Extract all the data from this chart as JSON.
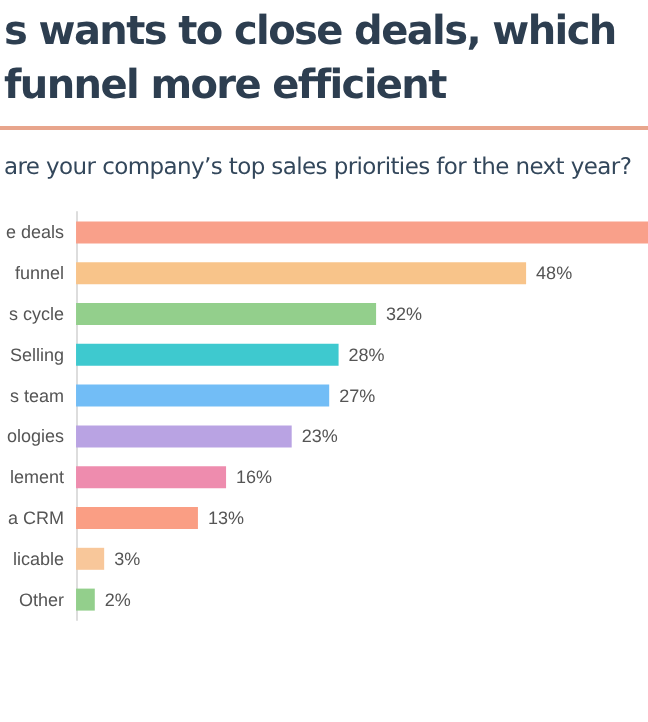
{
  "chart_data": {
    "type": "bar",
    "orientation": "horizontal",
    "title": "s wants to close deals, which\nfunnel more efficient",
    "subtitle": "are your company’s top sales priorities for the next year?",
    "categories": [
      "e deals",
      "funnel",
      "s cycle",
      "Selling",
      "s team",
      "ologies",
      "lement",
      "a CRM",
      "licable",
      "Other"
    ],
    "values": [
      61,
      48,
      32,
      28,
      27,
      23,
      16,
      13,
      3,
      2
    ],
    "colors": [
      "#f9a08a",
      "#f8c48a",
      "#93cf8c",
      "#3ec9cf",
      "#72bdf6",
      "#b9a3e3",
      "#ee8cae",
      "#fa9e84",
      "#f8c79a",
      "#93cf8c"
    ],
    "value_labels": [
      null,
      "48%",
      "32%",
      "28%",
      "27%",
      "23%",
      "16%",
      "13%",
      "3%",
      "2%"
    ],
    "grid": false
  }
}
